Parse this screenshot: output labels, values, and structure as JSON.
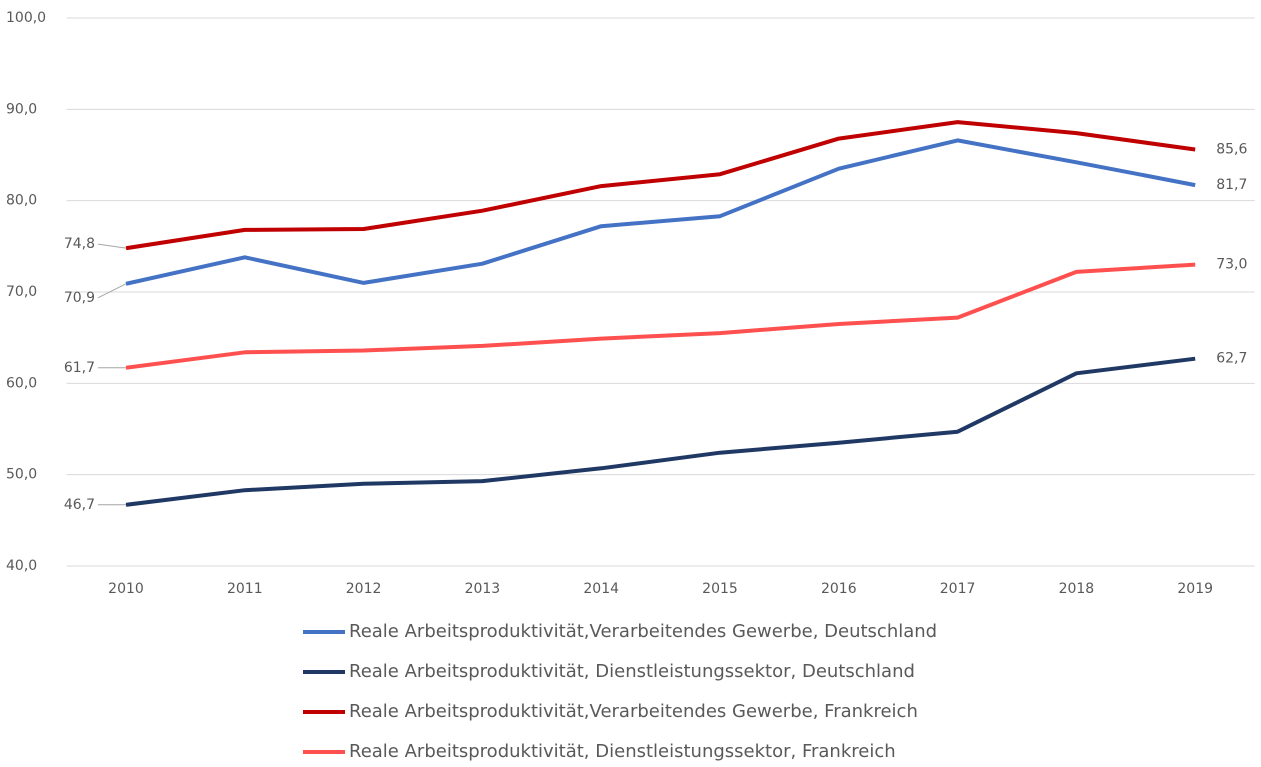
{
  "chart_data": {
    "type": "line",
    "categories": [
      "2010",
      "2011",
      "2012",
      "2013",
      "2014",
      "2015",
      "2016",
      "2017",
      "2018",
      "2019"
    ],
    "ylim": [
      40,
      100
    ],
    "yticks": [
      {
        "value": 40,
        "label": "40,0"
      },
      {
        "value": 50,
        "label": "50,0"
      },
      {
        "value": 60,
        "label": "60,0"
      },
      {
        "value": 70,
        "label": "70,0"
      },
      {
        "value": 80,
        "label": "80,0"
      },
      {
        "value": 90,
        "label": "90,0"
      },
      {
        "value": 100,
        "label": "100,0"
      }
    ],
    "grid": true,
    "legend": "bottom",
    "series": [
      {
        "name": "Reale Arbeitsproduktivität,Verarbeitendes Gewerbe, Deutschland",
        "color": "#4472c4",
        "values": [
          70.9,
          73.8,
          71.0,
          73.1,
          77.2,
          78.3,
          83.5,
          86.6,
          84.2,
          81.7
        ],
        "value_labels": [
          "70,9",
          null,
          null,
          null,
          null,
          null,
          null,
          null,
          null,
          "81,7"
        ]
      },
      {
        "name": "Reale Arbeitsproduktivität, Dienstleistungssektor, Deutschland",
        "color": "#203864",
        "values": [
          46.7,
          48.3,
          49.0,
          49.3,
          50.7,
          52.4,
          53.5,
          54.7,
          61.1,
          62.7
        ],
        "value_labels": [
          "46,7",
          null,
          null,
          null,
          null,
          null,
          null,
          null,
          null,
          "62,7"
        ]
      },
      {
        "name": "Reale Arbeitsproduktivität,Verarbeitendes Gewerbe, Frankreich",
        "color": "#c00000",
        "values": [
          74.8,
          76.8,
          76.9,
          78.9,
          81.6,
          82.9,
          86.8,
          88.6,
          87.4,
          85.6
        ],
        "value_labels": [
          "74,8",
          null,
          null,
          null,
          null,
          null,
          null,
          null,
          null,
          "85,6"
        ]
      },
      {
        "name": "Reale Arbeitsproduktivität, Dienstleistungssektor, Frankreich",
        "color": "#ff5050",
        "values": [
          61.7,
          63.4,
          63.6,
          64.1,
          64.9,
          65.5,
          66.5,
          67.2,
          72.2,
          73.0
        ],
        "value_labels": [
          "61,7",
          null,
          null,
          null,
          null,
          null,
          null,
          null,
          null,
          "73,0"
        ]
      }
    ]
  }
}
